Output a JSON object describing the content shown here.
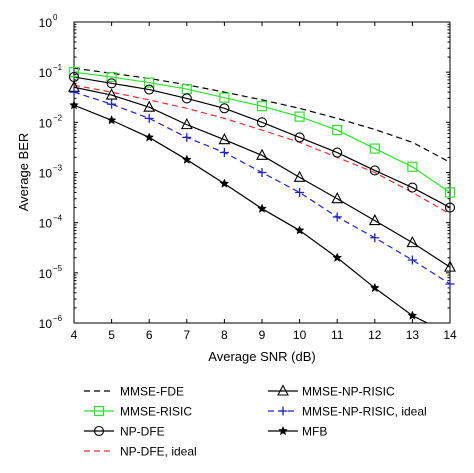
{
  "chart_data": {
    "type": "line",
    "xlabel": "Average SNR (dB)",
    "ylabel": "Average BER",
    "xlim": [
      4,
      14
    ],
    "ylim": [
      1e-06,
      1
    ],
    "yscale": "log",
    "grid": false,
    "legend_position": "bottom",
    "x_ticks": [
      "4",
      "5",
      "6",
      "7",
      "8",
      "9",
      "10",
      "11",
      "12",
      "13",
      "14"
    ],
    "y_ticks": [
      {
        "value": 1,
        "base": "10",
        "exp": "0"
      },
      {
        "value": 0.1,
        "base": "10",
        "exp": "−1"
      },
      {
        "value": 0.01,
        "base": "10",
        "exp": "−2"
      },
      {
        "value": 0.001,
        "base": "10",
        "exp": "−3"
      },
      {
        "value": 0.0001,
        "base": "10",
        "exp": "−4"
      },
      {
        "value": 1e-05,
        "base": "10",
        "exp": "−5"
      },
      {
        "value": 1e-06,
        "base": "10",
        "exp": "−6"
      }
    ],
    "x": [
      4,
      5,
      6,
      7,
      8,
      9,
      10,
      11,
      12,
      13,
      14
    ],
    "series": [
      {
        "name": "MMSE-FDE",
        "color": "#000000",
        "dash": "6,4",
        "marker": "none",
        "values": [
          0.12,
          0.095,
          0.075,
          0.056,
          0.04,
          0.028,
          0.019,
          0.012,
          0.0072,
          0.004,
          0.0016
        ]
      },
      {
        "name": "MMSE-RISIC",
        "color": "#33dd33",
        "dash": "",
        "marker": "square",
        "values": [
          0.1,
          0.08,
          0.062,
          0.046,
          0.031,
          0.021,
          0.013,
          0.007,
          0.003,
          0.0013,
          0.0004
        ]
      },
      {
        "name": "NP-DFE",
        "color": "#000000",
        "dash": "",
        "marker": "circle",
        "values": [
          0.08,
          0.06,
          0.045,
          0.03,
          0.019,
          0.01,
          0.005,
          0.0025,
          0.0011,
          0.0005,
          0.0002
        ]
      },
      {
        "name": "NP-DFE, ideal",
        "color": "#dd3333",
        "dash": "6,4",
        "marker": "none",
        "values": [
          0.055,
          0.04,
          0.028,
          0.019,
          0.012,
          0.007,
          0.004,
          0.002,
          0.001,
          0.0004,
          0.00015
        ]
      },
      {
        "name": "MMSE-NP-RISIC",
        "color": "#000000",
        "dash": "",
        "marker": "triangle",
        "values": [
          0.05,
          0.035,
          0.02,
          0.009,
          0.0045,
          0.0022,
          0.0008,
          0.0003,
          0.00011,
          4e-05,
          1.3e-05
        ]
      },
      {
        "name": "MMSE-NP-RISIC, ideal",
        "color": "#2222bb",
        "dash": "6,4",
        "marker": "plus",
        "values": [
          0.04,
          0.023,
          0.012,
          0.005,
          0.0025,
          0.001,
          0.0004,
          0.00013,
          5e-05,
          1.8e-05,
          6e-06
        ]
      },
      {
        "name": "MFB",
        "color": "#000000",
        "dash": "",
        "marker": "star",
        "values": [
          0.022,
          0.011,
          0.005,
          0.0018,
          0.0006,
          0.00019,
          7e-05,
          2e-05,
          5e-06,
          1.4e-06,
          6e-07
        ]
      }
    ]
  }
}
